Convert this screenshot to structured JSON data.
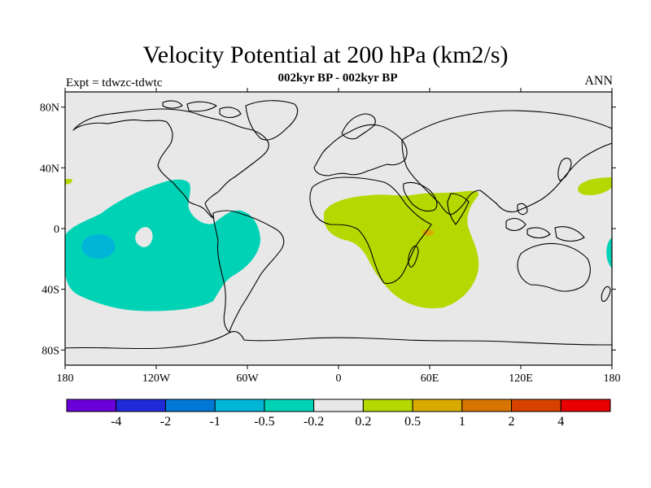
{
  "figure": {
    "title": "Velocity Potential at 200 hPa (km2/s)",
    "subtitle": "002kyr BP - 002kyr BP",
    "left_label": "Expt = tdwzc-tdwtc",
    "right_label": "ANN"
  },
  "map": {
    "background_color": "#e8e8e8",
    "lat_ticks": [
      "80N",
      "40N",
      "0",
      "40S",
      "80S"
    ],
    "lon_ticks": [
      "180",
      "120W",
      "60W",
      "0",
      "60E",
      "120E",
      "180"
    ],
    "regions": [
      {
        "name": "pacific-negative-region",
        "level": "-0.5 to -0.2",
        "color": "#00d3b5"
      },
      {
        "name": "pacific-strong-negative-region",
        "level": "-1 to -0.5",
        "color": "#00b5d8"
      },
      {
        "name": "indian-positive-region",
        "level": "0.2 to 0.5",
        "color": "#b5d800"
      },
      {
        "name": "indian-strong-positive-spot",
        "level": "0.5 to 1",
        "color": "#d8aa00"
      },
      {
        "name": "west-pacific-positive-region",
        "level": "0.2 to 0.5",
        "color": "#b5d800"
      },
      {
        "name": "east-edge-negative-region",
        "level": "-0.5 to -0.2",
        "color": "#00d3b5"
      }
    ]
  },
  "colorbar": {
    "colors": [
      "#6a00d8",
      "#1f2bd8",
      "#0078d8",
      "#00b5d8",
      "#00d3b5",
      "#e8e8e8",
      "#b5d800",
      "#d8aa00",
      "#d87500",
      "#d84200",
      "#e80000"
    ],
    "labels": [
      "-4",
      "-2",
      "-1",
      "-0.5",
      "-0.2",
      "0.2",
      "0.5",
      "1",
      "2",
      "4"
    ]
  }
}
